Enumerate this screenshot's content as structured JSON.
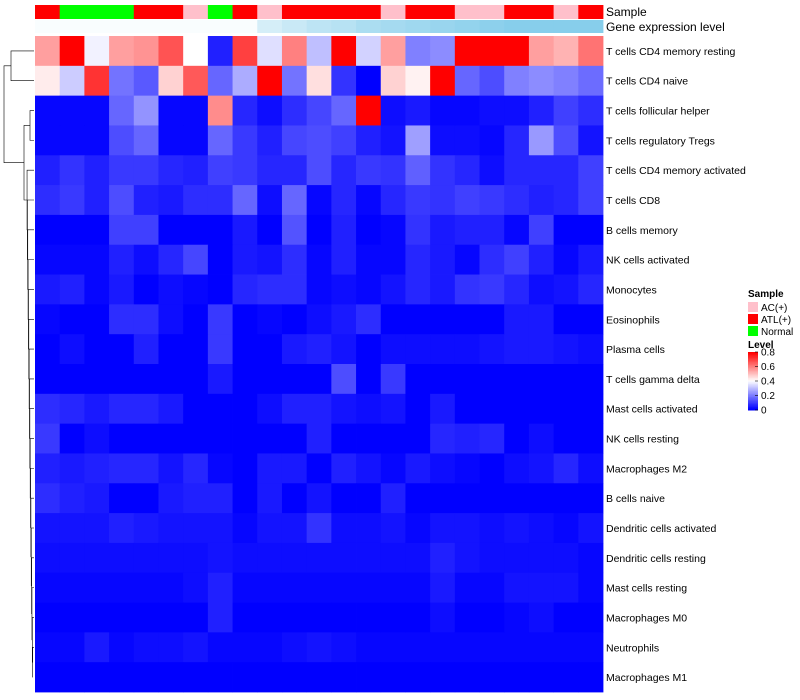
{
  "chart_data": {
    "type": "heatmap",
    "annotation_rows": [
      "Sample",
      "Gene expression level"
    ],
    "samples": [
      "ATL(+)",
      "Normal",
      "Normal",
      "Normal",
      "ATL(+)",
      "ATL(+)",
      "AC(+)",
      "Normal",
      "ATL(+)",
      "AC(+)",
      "ATL(+)",
      "ATL(+)",
      "ATL(+)",
      "ATL(+)",
      "AC(+)",
      "ATL(+)",
      "ATL(+)",
      "AC(+)",
      "AC(+)",
      "ATL(+)",
      "ATL(+)",
      "AC(+)",
      "ATL(+)"
    ],
    "gene_expression_level": [
      0.05,
      0.05,
      0.05,
      0.05,
      0.05,
      0.05,
      0.05,
      0.05,
      0.05,
      0.35,
      0.45,
      0.55,
      0.6,
      0.7,
      0.75,
      0.8,
      0.85,
      0.9,
      0.95,
      1.0,
      1.0,
      1.0,
      1.0
    ],
    "rows": [
      "T cells CD4 memory resting",
      "T cells CD4 naive",
      "T cells follicular helper",
      "T cells regulatory  Tregs",
      "T cells CD4 memory activated",
      "T cells CD8",
      "B cells memory",
      "NK cells activated",
      "Monocytes",
      "Eosinophils",
      "Plasma cells",
      "T cells gamma delta",
      "Mast cells activated",
      "NK cells resting",
      "Macrophages M2",
      "B cells naive",
      "Dendritic cells activated",
      "Dendritic cells resting",
      "Mast cells resting",
      "Macrophages M0",
      "Neutrophils",
      "Macrophages M1"
    ],
    "values": [
      [
        0.55,
        0.8,
        0.38,
        0.55,
        0.57,
        0.67,
        0.4,
        0.05,
        0.7,
        0.35,
        0.6,
        0.3,
        0.8,
        0.33,
        0.55,
        0.2,
        0.22,
        0.8,
        0.8,
        0.8,
        0.55,
        0.52,
        0.62
      ],
      [
        0.43,
        0.32,
        0.72,
        0.18,
        0.14,
        0.47,
        0.66,
        0.16,
        0.27,
        0.8,
        0.18,
        0.45,
        0.08,
        0.0,
        0.47,
        0.42,
        0.8,
        0.16,
        0.12,
        0.2,
        0.22,
        0.2,
        0.17
      ],
      [
        0.01,
        0.01,
        0.01,
        0.16,
        0.23,
        0.01,
        0.01,
        0.58,
        0.06,
        0.02,
        0.07,
        0.11,
        0.16,
        0.8,
        0.02,
        0.04,
        0.01,
        0.01,
        0.02,
        0.02,
        0.05,
        0.1,
        0.07
      ],
      [
        0.01,
        0.01,
        0.01,
        0.12,
        0.16,
        0.01,
        0.01,
        0.16,
        0.09,
        0.05,
        0.11,
        0.12,
        0.1,
        0.05,
        0.03,
        0.25,
        0.02,
        0.02,
        0.01,
        0.06,
        0.24,
        0.12,
        0.03
      ],
      [
        0.05,
        0.08,
        0.05,
        0.09,
        0.09,
        0.06,
        0.05,
        0.1,
        0.09,
        0.06,
        0.06,
        0.12,
        0.06,
        0.09,
        0.08,
        0.15,
        0.08,
        0.06,
        0.02,
        0.06,
        0.06,
        0.06,
        0.1
      ],
      [
        0.07,
        0.09,
        0.05,
        0.12,
        0.05,
        0.04,
        0.07,
        0.07,
        0.16,
        0.02,
        0.16,
        0.01,
        0.06,
        0.01,
        0.06,
        0.09,
        0.08,
        0.1,
        0.09,
        0.07,
        0.05,
        0.06,
        0.1
      ],
      [
        0.0,
        0.0,
        0.0,
        0.1,
        0.1,
        0.0,
        0.0,
        0.0,
        0.04,
        0.0,
        0.13,
        0.0,
        0.05,
        0.0,
        0.01,
        0.08,
        0.04,
        0.05,
        0.05,
        0.01,
        0.1,
        0.0,
        0.0
      ],
      [
        0.01,
        0.01,
        0.01,
        0.05,
        0.02,
        0.06,
        0.11,
        0.0,
        0.04,
        0.03,
        0.07,
        0.01,
        0.05,
        0.01,
        0.01,
        0.06,
        0.04,
        0.01,
        0.07,
        0.1,
        0.05,
        0.01,
        0.04
      ],
      [
        0.04,
        0.05,
        0.01,
        0.04,
        0.0,
        0.02,
        0.01,
        0.0,
        0.06,
        0.07,
        0.07,
        0.01,
        0.02,
        0.01,
        0.03,
        0.06,
        0.04,
        0.08,
        0.09,
        0.06,
        0.02,
        0.03,
        0.06
      ],
      [
        0.01,
        0.0,
        0.0,
        0.07,
        0.07,
        0.02,
        0.0,
        0.09,
        0.0,
        0.01,
        0.0,
        0.02,
        0.04,
        0.07,
        0.0,
        0.0,
        0.0,
        0.0,
        0.0,
        0.04,
        0.04,
        0.0,
        0.0
      ],
      [
        0.0,
        0.02,
        0.0,
        0.0,
        0.05,
        0.0,
        0.0,
        0.09,
        0.0,
        0.0,
        0.04,
        0.05,
        0.03,
        0.0,
        0.02,
        0.02,
        0.02,
        0.02,
        0.03,
        0.04,
        0.04,
        0.03,
        0.02
      ],
      [
        0.0,
        0.0,
        0.0,
        0.0,
        0.0,
        0.0,
        0.0,
        0.04,
        0.0,
        0.0,
        0.0,
        0.0,
        0.12,
        0.0,
        0.09,
        0.0,
        0.0,
        0.0,
        0.0,
        0.0,
        0.0,
        0.0,
        0.0
      ],
      [
        0.07,
        0.06,
        0.04,
        0.06,
        0.06,
        0.04,
        0.0,
        0.0,
        0.0,
        0.02,
        0.05,
        0.05,
        0.03,
        0.02,
        0.03,
        0.0,
        0.04,
        0.0,
        0.0,
        0.0,
        0.0,
        0.0,
        0.0
      ],
      [
        0.09,
        0.0,
        0.02,
        0.0,
        0.0,
        0.0,
        0.0,
        0.0,
        0.0,
        0.0,
        0.0,
        0.05,
        0.0,
        0.0,
        0.0,
        0.0,
        0.06,
        0.05,
        0.06,
        0.0,
        0.02,
        0.0,
        0.0
      ],
      [
        0.05,
        0.04,
        0.05,
        0.06,
        0.06,
        0.03,
        0.06,
        0.01,
        0.0,
        0.04,
        0.04,
        0.0,
        0.05,
        0.03,
        0.01,
        0.04,
        0.02,
        0.01,
        0.0,
        0.02,
        0.03,
        0.06,
        0.02
      ],
      [
        0.07,
        0.05,
        0.04,
        0.0,
        0.0,
        0.04,
        0.05,
        0.05,
        0.0,
        0.04,
        0.0,
        0.03,
        0.0,
        0.0,
        0.05,
        0.0,
        0.0,
        0.0,
        0.0,
        0.0,
        0.0,
        0.0,
        0.0
      ],
      [
        0.03,
        0.03,
        0.03,
        0.05,
        0.04,
        0.03,
        0.03,
        0.03,
        0.01,
        0.03,
        0.03,
        0.08,
        0.02,
        0.02,
        0.03,
        0.01,
        0.03,
        0.03,
        0.02,
        0.03,
        0.02,
        0.01,
        0.03
      ],
      [
        0.02,
        0.02,
        0.02,
        0.02,
        0.02,
        0.02,
        0.02,
        0.03,
        0.02,
        0.02,
        0.02,
        0.02,
        0.02,
        0.02,
        0.02,
        0.02,
        0.05,
        0.03,
        0.02,
        0.02,
        0.02,
        0.02,
        0.01
      ],
      [
        0.01,
        0.01,
        0.01,
        0.01,
        0.01,
        0.01,
        0.02,
        0.05,
        0.01,
        0.01,
        0.01,
        0.01,
        0.01,
        0.01,
        0.01,
        0.01,
        0.04,
        0.01,
        0.01,
        0.03,
        0.03,
        0.03,
        0.01
      ],
      [
        0.0,
        0.0,
        0.0,
        0.0,
        0.0,
        0.0,
        0.0,
        0.05,
        0.0,
        0.0,
        0.0,
        0.0,
        0.0,
        0.0,
        0.0,
        0.0,
        0.02,
        0.0,
        0.0,
        0.01,
        0.02,
        0.0,
        0.0
      ],
      [
        0.01,
        0.01,
        0.04,
        0.01,
        0.02,
        0.02,
        0.03,
        0.01,
        0.01,
        0.01,
        0.02,
        0.03,
        0.02,
        0.01,
        0.01,
        0.01,
        0.01,
        0.01,
        0.01,
        0.01,
        0.01,
        0.01,
        0.01
      ],
      [
        0.0,
        0.0,
        0.0,
        0.0,
        0.0,
        0.0,
        0.0,
        0.0,
        0.0,
        0.0,
        0.0,
        0.0,
        0.0,
        0.0,
        0.0,
        0.0,
        0.0,
        0.0,
        0.0,
        0.0,
        0.0,
        0.0,
        0.0
      ]
    ],
    "legend": {
      "sample_title": "Sample",
      "sample_entries": [
        {
          "label": "AC(+)",
          "color": "#ffc0cb"
        },
        {
          "label": "ATL(+)",
          "color": "#ff0000"
        },
        {
          "label": "Normal",
          "color": "#00ff00"
        }
      ],
      "level_title": "Level",
      "level_ticks": [
        "0.8",
        "0.6",
        "0.4",
        "0.2",
        "0"
      ],
      "level_tick_values": [
        0.8,
        0.6,
        0.4,
        0.2,
        0.0
      ],
      "range": [
        0,
        0.8
      ]
    },
    "colors": {
      "low": "#0000ff",
      "mid": "#ffffff",
      "high": "#ff0000",
      "expression_low": "#ffffff",
      "expression_high": "#87ceeb"
    }
  }
}
